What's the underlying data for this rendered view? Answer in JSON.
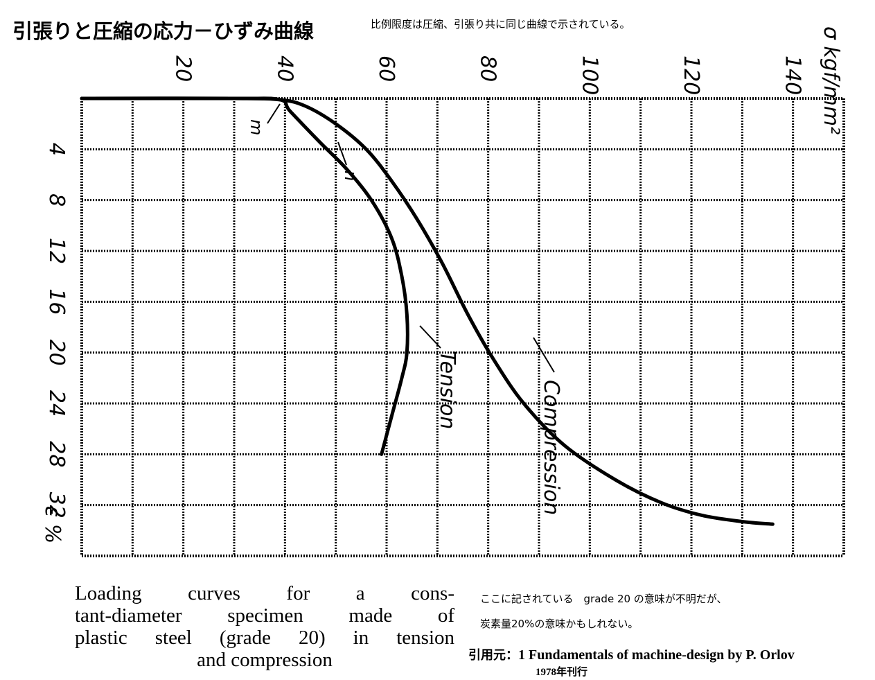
{
  "header": {
    "title": "引張りと圧縮の応力－ひずみ曲線",
    "subtitle": "比例限度は圧縮、引張り共に同じ曲線で示されている。"
  },
  "chart_data": {
    "type": "line",
    "title": "",
    "x_ticks": [
      "20",
      "40",
      "60",
      "80",
      "100",
      "120",
      "140"
    ],
    "y_ticks": [
      "4",
      "8",
      "12",
      "16",
      "20",
      "24",
      "28",
      "32"
    ],
    "xlabel": "σ kgf/mm²",
    "ylabel": "ε %",
    "xlim": [
      0,
      150
    ],
    "ylim": [
      0,
      36
    ],
    "grid": true,
    "series": [
      {
        "name": "Tension",
        "points": [
          [
            0,
            0
          ],
          [
            30,
            0
          ],
          [
            39,
            0.1
          ],
          [
            41,
            1
          ],
          [
            47,
            3.5
          ],
          [
            52,
            5.5
          ],
          [
            57,
            8
          ],
          [
            61,
            11
          ],
          [
            63,
            14
          ],
          [
            64,
            17
          ],
          [
            64,
            20
          ],
          [
            63,
            22
          ],
          [
            61,
            25
          ],
          [
            59,
            28
          ]
        ]
      },
      {
        "name": "Compression",
        "points": [
          [
            0,
            0
          ],
          [
            30,
            0
          ],
          [
            39,
            0.1
          ],
          [
            44,
            0.6
          ],
          [
            50,
            2
          ],
          [
            56,
            4
          ],
          [
            61,
            6.5
          ],
          [
            66,
            9.5
          ],
          [
            71,
            13
          ],
          [
            76,
            17
          ],
          [
            81,
            20.5
          ],
          [
            87,
            24
          ],
          [
            95,
            27.3
          ],
          [
            105,
            30
          ],
          [
            114,
            31.8
          ],
          [
            122,
            32.8
          ],
          [
            130,
            33.3
          ],
          [
            136,
            33.5
          ]
        ]
      }
    ],
    "annotations": [
      {
        "text": "m"
      },
      {
        "text": "n"
      }
    ]
  },
  "caption": {
    "line1": "Loading curves for a cons-",
    "line2": "tant-diameter specimen made of",
    "line3": "plastic steel (grade 20) in tension",
    "line4": "and compression"
  },
  "notes": {
    "note1": "ここに記されている　grade 20 の意味が不明だが、",
    "note2": "炭素量20%の意味かもしれない。"
  },
  "source": {
    "label": "引用元：",
    "ref": "1 Fundamentals of machine-design by P. Orlov",
    "year": "1978年刊行"
  }
}
